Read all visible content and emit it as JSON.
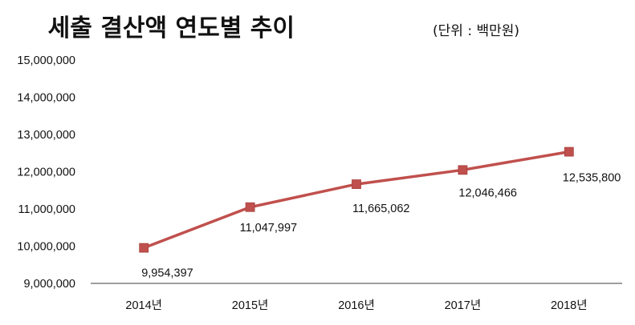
{
  "chart_data": {
    "type": "line",
    "title": "세출 결산액 연도별 추이",
    "subtitle": "(단위 : 백만원)",
    "categories": [
      "2014년",
      "2015년",
      "2016년",
      "2017년",
      "2018년"
    ],
    "series": [
      {
        "name": "세출 결산액",
        "values": [
          9954397,
          11047997,
          11665062,
          12046466,
          12535800
        ],
        "value_labels": [
          "9,954,397",
          "11,047,997",
          "11,665,062",
          "12,046,466",
          "12,535,800"
        ]
      }
    ],
    "ylim": [
      9000000,
      15000000
    ],
    "yticks": [
      9000000,
      10000000,
      11000000,
      12000000,
      13000000,
      14000000,
      15000000
    ],
    "ytick_labels": [
      "9,000,000",
      "10,000,000",
      "11,000,000",
      "12,000,000",
      "13,000,000",
      "14,000,000",
      "15,000,000"
    ],
    "xlabel": "",
    "ylabel": "",
    "grid": false,
    "legend": "none",
    "colors": {
      "line": "#c0504d",
      "marker": "#c0504d",
      "axis": "#7f7f7f",
      "text": "#111111"
    }
  }
}
